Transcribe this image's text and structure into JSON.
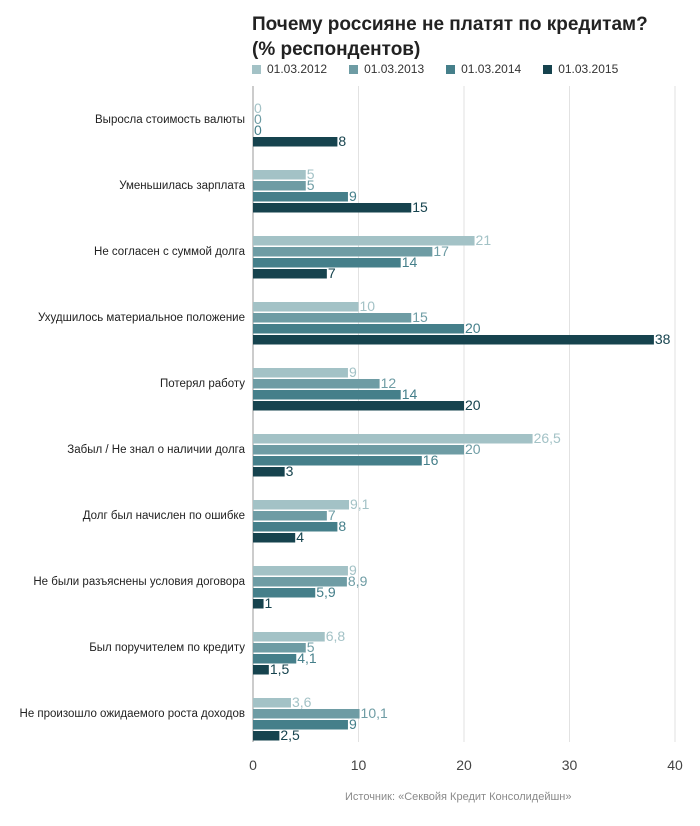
{
  "chart_data": {
    "type": "bar",
    "orientation": "horizontal",
    "title": "Почему россияне не платят по кредитам? (% респондентов)",
    "categories": [
      "Выросла стоимость валюты",
      "Уменьшилась зарплата",
      "Не согласен с суммой долга",
      "Ухудшилось материальное положение",
      "Потерял работу",
      "Забыл / Не знал о наличии долга",
      "Долг был начислен по ошибке",
      "Не были разъяснены условия договора",
      "Был поручителем по кредиту",
      "Не произошло ожидаемого роста доходов"
    ],
    "series": [
      {
        "name": "01.03.2012",
        "color": "#a3c2c6",
        "values": [
          0,
          5,
          21,
          10,
          9,
          26.5,
          9.1,
          9,
          6.8,
          3.6
        ],
        "labels": [
          "0",
          "5",
          "21",
          "10",
          "9",
          "26,5",
          "9,1",
          "9",
          "6,8",
          "3,6"
        ]
      },
      {
        "name": "01.03.2013",
        "color": "#6e9ca4",
        "values": [
          0,
          5,
          17,
          15,
          12,
          20,
          7,
          8.9,
          5,
          10.1
        ],
        "labels": [
          "0",
          "5",
          "17",
          "15",
          "12",
          "20",
          "7",
          "8,9",
          "5",
          "10,1"
        ]
      },
      {
        "name": "01.03.2014",
        "color": "#457f8a",
        "values": [
          0,
          9,
          14,
          20,
          14,
          16,
          8,
          5.9,
          4.1,
          9
        ],
        "labels": [
          "0",
          "9",
          "14",
          "20",
          "14",
          "16",
          "8",
          "5,9",
          "4,1",
          "9"
        ]
      },
      {
        "name": "01.03.2015",
        "color": "#16434e",
        "values": [
          8,
          15,
          7,
          38,
          20,
          3,
          4,
          1,
          1.5,
          2.5
        ],
        "labels": [
          "8",
          "15",
          "7",
          "38",
          "20",
          "3",
          "4",
          "1",
          "1,5",
          "2,5"
        ]
      }
    ],
    "xlim": [
      0,
      40
    ],
    "xticks": [
      "0",
      "10",
      "20",
      "30",
      "40"
    ],
    "grid": true,
    "legend_position": "top"
  },
  "title_lines": [
    "Почему россияне не платят по кредитам?",
    "(% респондентов)"
  ],
  "source": "Источник: «Секвойя Кредит Консолидейшн»"
}
